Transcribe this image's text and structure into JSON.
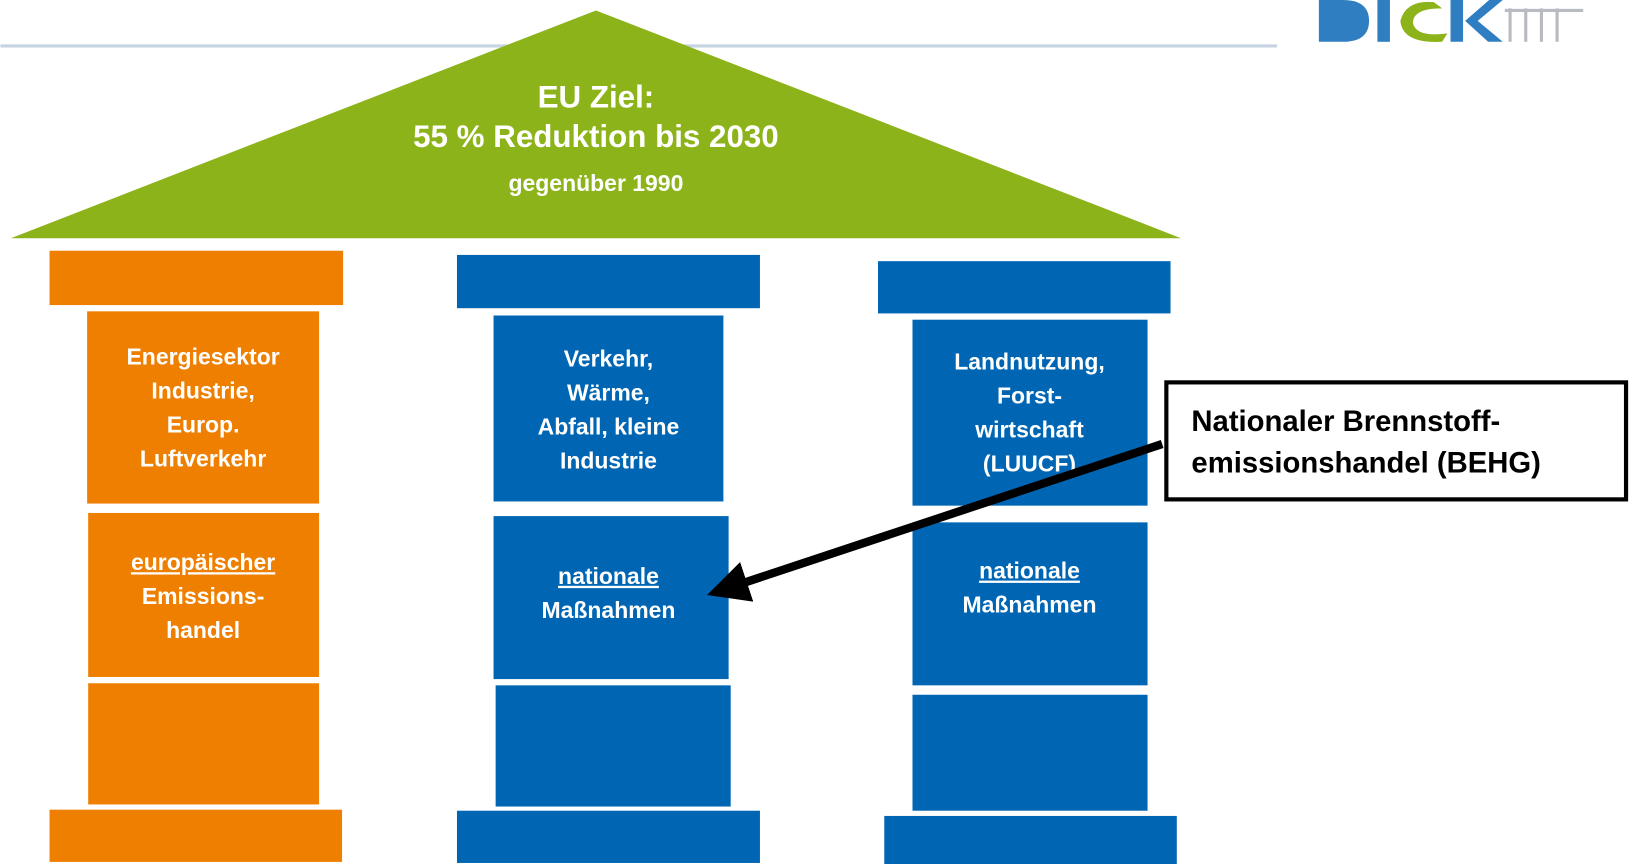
{
  "roof": {
    "lines": [
      "EU Ziel:",
      "55 % Reduktion bis 2030",
      "gegenüber 1990"
    ]
  },
  "pillars": [
    {
      "top_lines": [
        "Energiesektor",
        "Industrie,",
        "Europ.",
        "Luftverkehr"
      ],
      "bottom_lines": [
        "europäischer",
        "Emissions-",
        "handel"
      ]
    },
    {
      "top_lines": [
        "Verkehr,",
        "Wärme,",
        "Abfall, kleine",
        "Industrie"
      ],
      "bottom_lines": [
        "nationale",
        "Maßnahmen"
      ]
    },
    {
      "top_lines": [
        "Landnutzung,",
        "Forst-",
        "wirtschaft",
        "(LUUCF)"
      ],
      "bottom_lines": [
        "nationale",
        "Maßnahmen"
      ]
    }
  ],
  "callout": {
    "lines": [
      "Nationaler Brennstoff-",
      "emissionshandel (BEHG)"
    ]
  }
}
